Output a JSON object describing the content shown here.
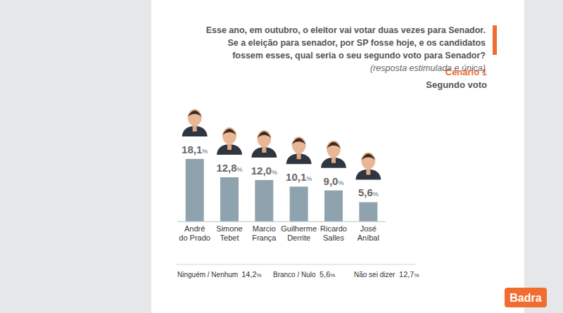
{
  "chart_data": {
    "type": "bar",
    "title": "Esse ano, em outubro, o eleitor vai votar duas vezes para Senador. Se a eleição para  senador, por SP fosse hoje, e os candidatos fossem esses, qual seria o seu segundo voto para Senador?",
    "subtitle": "(resposta estimulada e única)",
    "annotations": [
      "Cenário 1",
      "Segundo voto"
    ],
    "categories": [
      "André do Prado",
      "Simone Tebet",
      "Marcio França",
      "Guilherme Derrite",
      "Ricardo Salles",
      "José Aníbal"
    ],
    "values": [
      18.1,
      12.8,
      12.0,
      10.1,
      9.0,
      5.6
    ],
    "value_labels": [
      "18,1%",
      "12,8%",
      "12,0%",
      "10,1%",
      "9,0%",
      "5,6%"
    ],
    "color": "#8fa3af",
    "ylim": [
      0,
      20
    ],
    "data_labels": true,
    "tick_labels": "x",
    "notes": [
      {
        "label": "Ninguém / Nenhum",
        "value_label": "14,2%"
      },
      {
        "label": "Branco / Nulo",
        "value_label": "5,6%"
      },
      {
        "label": "Não sei dizer",
        "value_label": "12,7%"
      }
    ],
    "brand": "Badra"
  }
}
